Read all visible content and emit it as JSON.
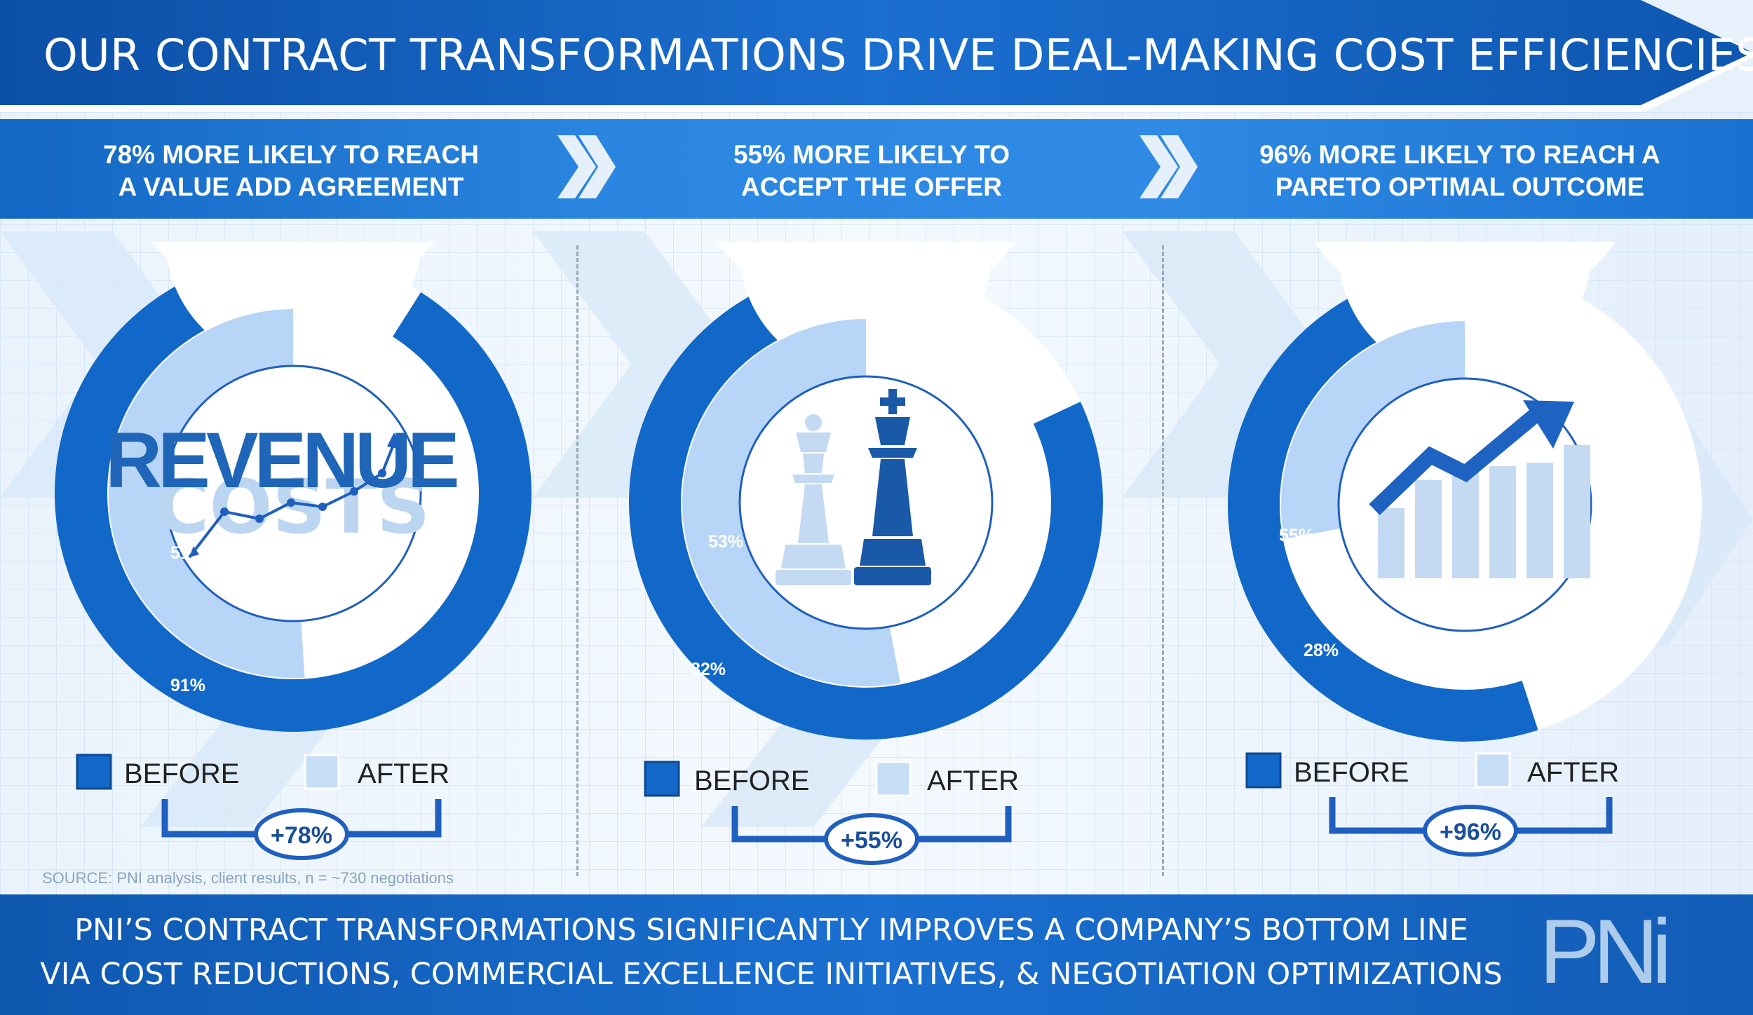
{
  "title": "OUR CONTRACT TRANSFORMATIONS DRIVE DEAL-MAKING COST EFFICIENCIES",
  "headers": [
    {
      "line1": "78% MORE LIKELY TO REACH",
      "line2": "A VALUE ADD AGREEMENT"
    },
    {
      "line1": "55% MORE LIKELY TO",
      "line2": "ACCEPT THE OFFER"
    },
    {
      "line1": "96% MORE LIKELY TO REACH A",
      "line2": "PARETO OPTIMAL OUTCOME"
    }
  ],
  "legend": {
    "before": "BEFORE",
    "after": "AFTER"
  },
  "source": "SOURCE: PNI analysis, client results, n = ~730 negotiations",
  "footer": {
    "line1": "PNI’S CONTRACT TRANSFORMATIONS SIGNIFICANTLY IMPROVES A COMPANY’S BOTTOM LINE",
    "line2": "VIA COST REDUCTIONS, COMMERCIAL EXCELLENCE INITIATIVES, & NEGOTIATION OPTIMIZATIONS"
  },
  "logo": "PNi",
  "colors": {
    "before": "#1268c8",
    "after": "#b7d5f6",
    "remainder": "#ffffff",
    "accent": "#0f58b0"
  },
  "icons": [
    "revenue-costs-icon",
    "chess-pieces-icon",
    "growth-arrow-icon"
  ],
  "chart_data": [
    {
      "type": "pie",
      "series": [
        {
          "name": "BEFORE",
          "values": [
            91
          ]
        },
        {
          "name": "AFTER",
          "values": [
            51
          ]
        }
      ],
      "labels": {
        "before": "91%",
        "after": "51%"
      },
      "icon_text": {
        "top": "REVENUE",
        "bottom": "COSTS"
      },
      "badge": "+78%"
    },
    {
      "type": "pie",
      "series": [
        {
          "name": "BEFORE",
          "values": [
            82
          ]
        },
        {
          "name": "AFTER",
          "values": [
            53
          ]
        }
      ],
      "labels": {
        "before": "82%",
        "after": "53%"
      },
      "badge": "+55%"
    },
    {
      "type": "pie",
      "series": [
        {
          "name": "BEFORE",
          "values": [
            55
          ]
        },
        {
          "name": "AFTER",
          "values": [
            28
          ]
        }
      ],
      "labels": {
        "before": "55%",
        "after": "28%"
      },
      "badge": "+96%"
    }
  ]
}
